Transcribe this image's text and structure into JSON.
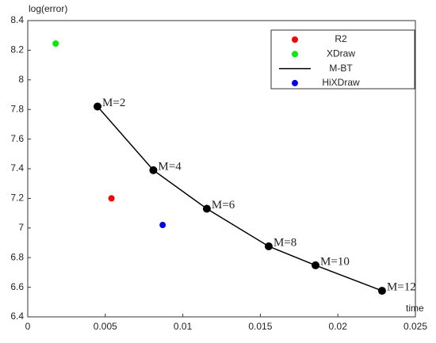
{
  "chart_data": {
    "type": "scatter",
    "y_label": "log(error)",
    "x_label": "time",
    "xlim": [
      0,
      0.025
    ],
    "xticks": [
      0,
      0.005,
      0.01,
      0.015,
      0.02,
      0.025
    ],
    "ylim": [
      6.4,
      8.4
    ],
    "yticks": [
      6.4,
      6.6,
      6.8,
      7,
      7.2,
      7.4,
      7.6,
      7.8,
      8,
      8.2,
      8.4
    ],
    "legend": "upper right",
    "grid": false,
    "series": [
      {
        "name": "R2",
        "color": "#ff0000",
        "mode": "markers",
        "x": [
          0.0054
        ],
        "values": [
          7.2
        ]
      },
      {
        "name": "XDraw",
        "color": "#00ee00",
        "mode": "markers",
        "x": [
          0.0018
        ],
        "values": [
          8.245
        ]
      },
      {
        "name": "M-BT",
        "color": "#000000",
        "mode": "line+markers",
        "x": [
          0.0045,
          0.0081,
          0.01155,
          0.01554,
          0.01856,
          0.02285
        ],
        "values": [
          7.82,
          7.39,
          7.13,
          6.876,
          6.748,
          6.576
        ],
        "point_labels": [
          "M=2",
          "M=4",
          "M=6",
          "M=8",
          "M=10",
          "M=12"
        ]
      },
      {
        "name": "HiXDraw",
        "color": "#0000ff",
        "mode": "markers",
        "x": [
          0.0087
        ],
        "values": [
          7.02
        ]
      }
    ]
  }
}
